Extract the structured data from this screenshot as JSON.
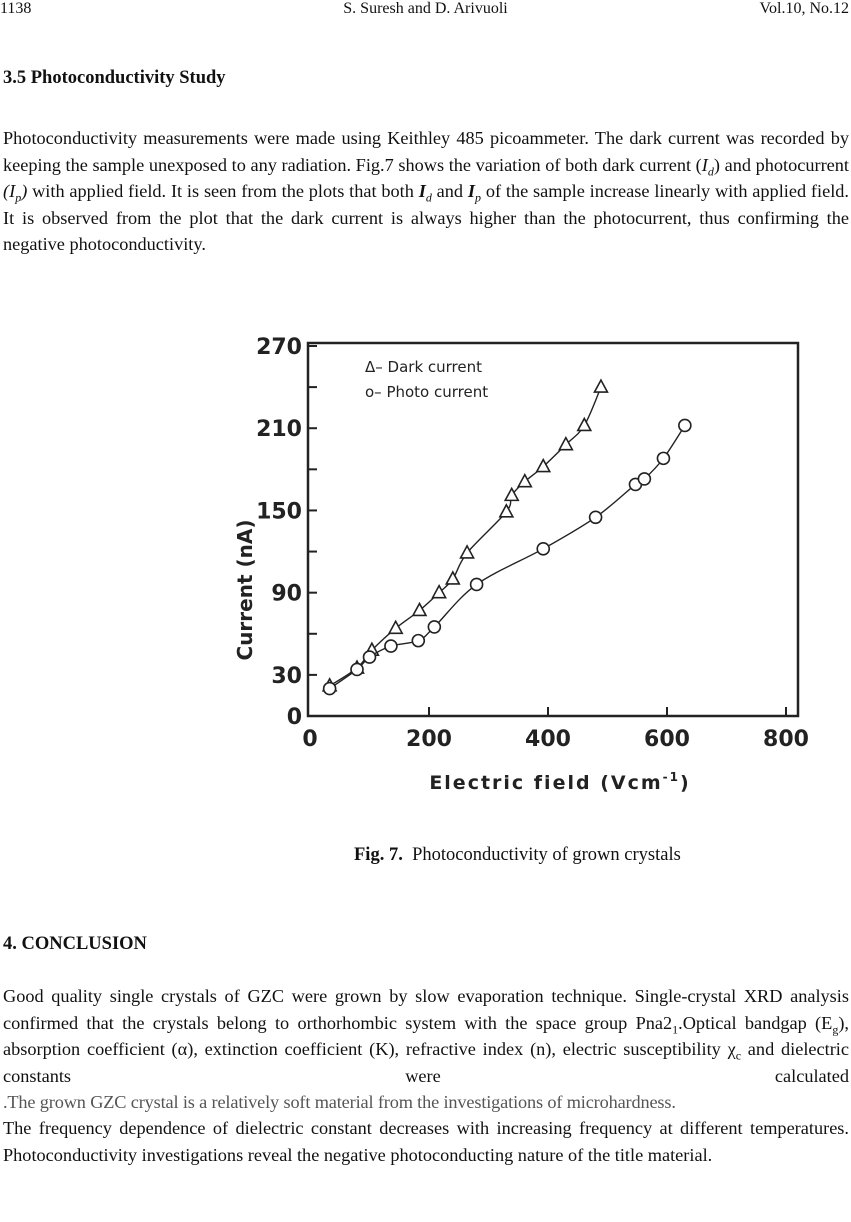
{
  "header": {
    "page_number": "1138",
    "authors": "S. Suresh and D. Arivuoli",
    "volume": "Vol.10, No.12"
  },
  "section_35": {
    "title": "3.5 Photoconductivity Study",
    "p1": "Photoconductivity measurements were made using Keithley 485 picoammeter. The dark current was recorded by keeping the sample unexposed to any radiation. Fig.7 shows the variation of both dark current (",
    "Id_I": "I",
    "Id_sub": "d",
    "p2": ") and photocurrent ",
    "Ip_open": "(I",
    "Ip_sub": "p",
    "Ip_close": ")",
    "p3": " with applied field. It is seen from the plots that both ",
    "Id2_I": "I",
    "Id2_sub": "d",
    "p4": " and ",
    "Ip2_I": "I",
    "Ip2_sub": "p",
    "p5": " of the sample increase linearly with applied field. It is observed from the plot that the dark current is always higher than the photocurrent, thus confirming the negative photoconductivity."
  },
  "figure": {
    "label": "Fig. 7.",
    "caption": "Photoconductivity of grown crystals"
  },
  "chart_data": {
    "type": "line",
    "title": "",
    "xlabel": "Electric field (Vcm",
    "xlabel_sup": "-1",
    "xlabel_close": ")",
    "ylabel": "Current (nA)",
    "xlim": [
      0,
      800
    ],
    "ylim": [
      0,
      270
    ],
    "xticks": [
      "0",
      "200",
      "400",
      "600",
      "800"
    ],
    "yticks": [
      "0",
      "30",
      "90",
      "150",
      "210",
      "270"
    ],
    "ytick_values": [
      0,
      30,
      90,
      150,
      210,
      270
    ],
    "xtick_values": [
      0,
      200,
      400,
      600,
      800
    ],
    "grid": false,
    "legend_position": "top-left",
    "series": [
      {
        "name": "Dark current",
        "legend": "Δ– Dark current",
        "marker": "triangle",
        "x": [
          33,
          79,
          104,
          144,
          184,
          217,
          240,
          264,
          330,
          339,
          361,
          392,
          430,
          461,
          489
        ],
        "y": [
          22,
          35,
          48,
          64,
          77,
          90,
          100,
          119,
          149,
          161,
          171,
          182,
          198,
          212,
          240
        ]
      },
      {
        "name": "Photo current",
        "legend": "o– Photo current",
        "marker": "circle",
        "x": [
          33,
          79,
          100,
          136,
          182,
          209,
          280,
          392,
          480,
          547,
          562,
          594,
          630
        ],
        "y": [
          20,
          34,
          43,
          51,
          55,
          65,
          96,
          122,
          145,
          169,
          173,
          188,
          212
        ]
      }
    ]
  },
  "conclusion": {
    "title": "4. CONCLUSION",
    "a1": "Good quality single crystals of GZC were grown by slow evaporation technique. Single-crystal XRD analysis confirmed that the crystals belong to orthorhombic system with the space group Pna2",
    "a1_sub": "1",
    "a2": ".Optical bandgap (E",
    "a2_sub": "g",
    "a3": "), absorption coefficient (α), extinction coefficient (K), refractive index (n), electric susceptibility χ",
    "a3_sub": "c",
    "a4": " and dielectric constants were calculated",
    "gray": ".The grown GZC crystal is a relatively soft material from the investigations of microhardness.",
    "b": "The frequency dependence of dielectric constant decreases with increasing frequency at different temperatures. Photoconductivity investigations reveal the negative photoconducting nature of the title material."
  }
}
